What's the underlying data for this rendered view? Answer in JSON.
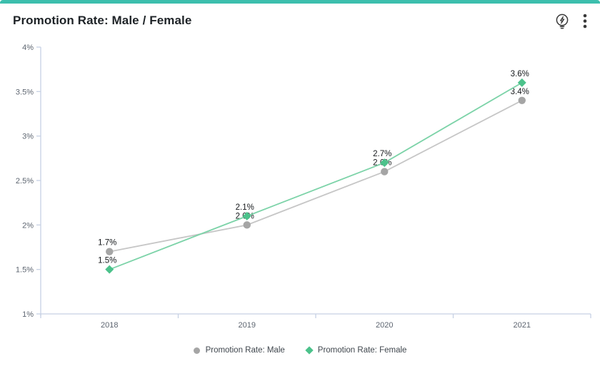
{
  "card": {
    "title": "Promotion Rate: Male / Female",
    "accent_color": "#3cbfad"
  },
  "toolbar": {
    "insight_icon": "lightbulb-bolt",
    "menu_icon": "kebab-menu",
    "icon_color": "#383838"
  },
  "chart_data": {
    "type": "line",
    "title": "Promotion Rate: Male / Female",
    "categories": [
      "2018",
      "2019",
      "2020",
      "2021"
    ],
    "series": [
      {
        "name": "Promotion Rate: Male",
        "marker": "circle",
        "marker_color": "#a5a5a5",
        "line_color": "#c6c6c6",
        "values": [
          1.7,
          2.0,
          2.6,
          3.4
        ],
        "data_labels": [
          "1.7%",
          "2.0%",
          "2.6%",
          "3.4%"
        ]
      },
      {
        "name": "Promotion Rate: Female",
        "marker": "diamond",
        "marker_color": "#4cc28b",
        "line_color": "#7cd3a8",
        "values": [
          1.5,
          2.1,
          2.7,
          3.6
        ],
        "data_labels": [
          "1.5%",
          "2.1%",
          "2.7%",
          "3.6%"
        ]
      }
    ],
    "ylim": [
      1,
      4
    ],
    "yticks": [
      {
        "value": 4,
        "label": "4%"
      },
      {
        "value": 3.5,
        "label": "3.5%"
      },
      {
        "value": 3,
        "label": "3%"
      },
      {
        "value": 2.5,
        "label": "2.5%"
      },
      {
        "value": 2,
        "label": "2%"
      },
      {
        "value": 1.5,
        "label": "1.5%"
      },
      {
        "value": 1,
        "label": "1%"
      }
    ],
    "grid": false,
    "legend_position": "bottom",
    "axis_color": "#c7d1e4",
    "tick_label_color": "#5d6570",
    "data_label_color": "#15181b",
    "xlabel": "",
    "ylabel": ""
  }
}
